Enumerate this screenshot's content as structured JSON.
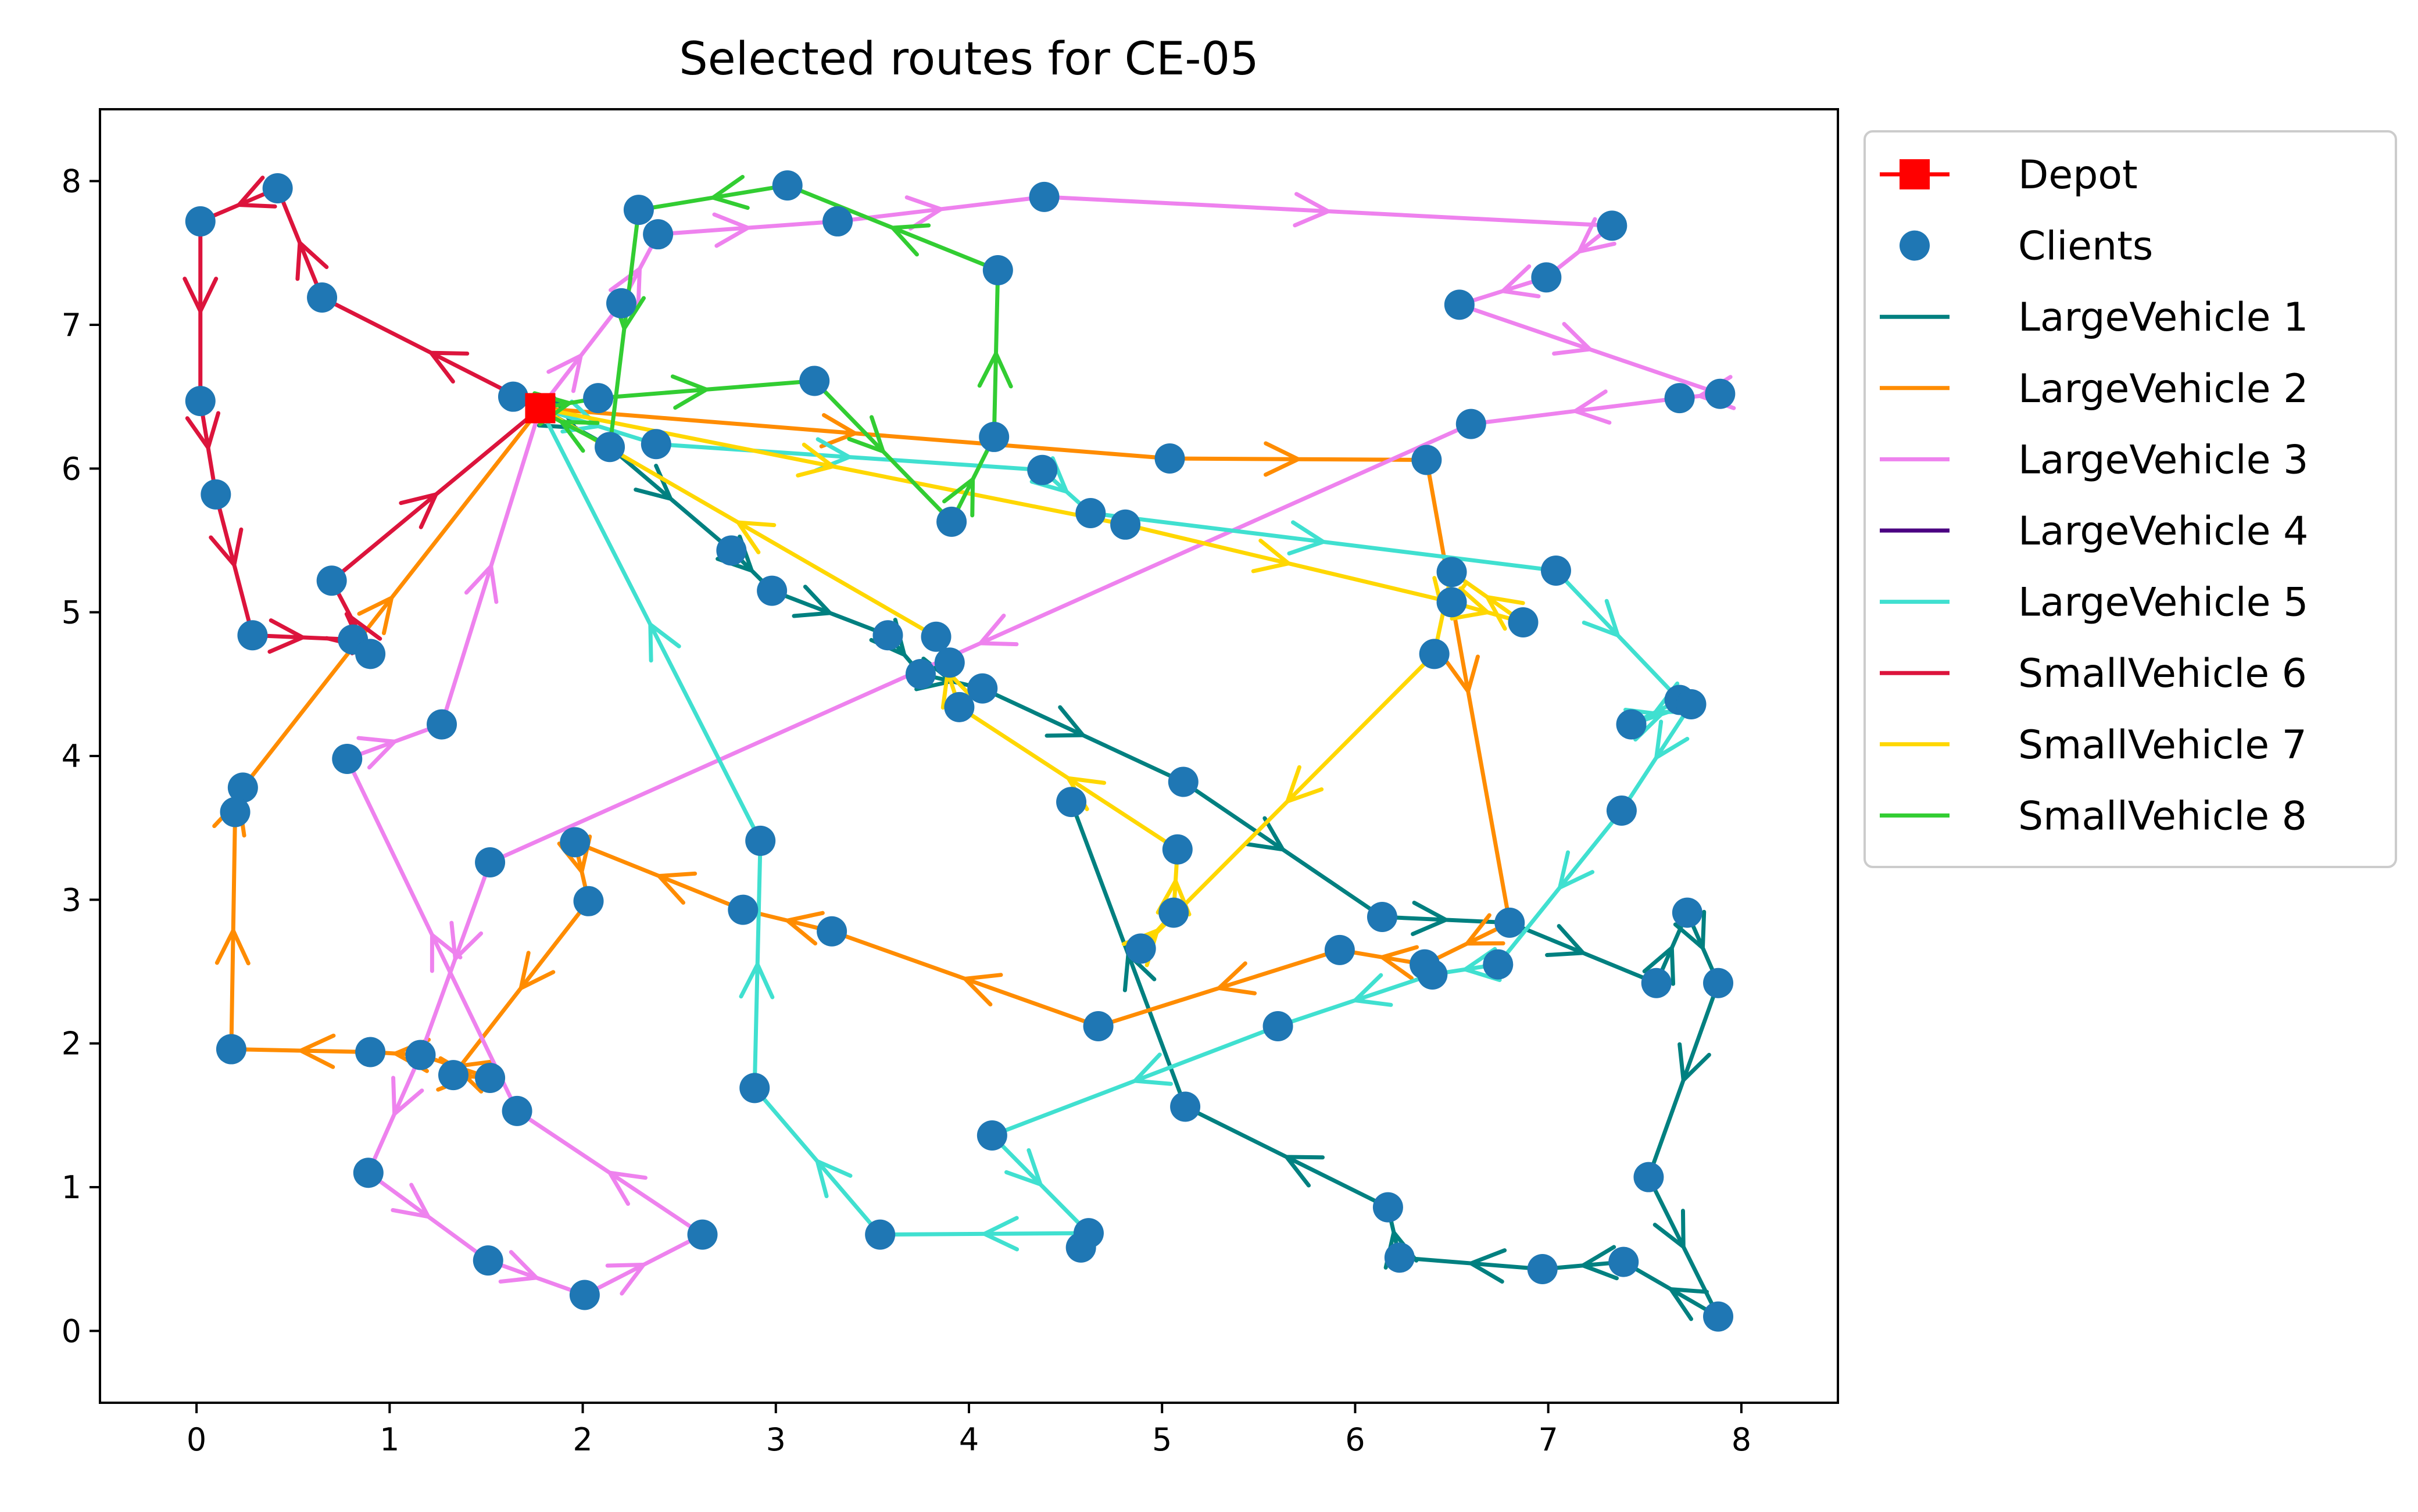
{
  "chart_data": {
    "type": "scatter",
    "title": "Selected routes for CE-05",
    "xlabel": "",
    "ylabel": "",
    "xlim": [
      -0.5,
      8.5
    ],
    "ylim": [
      -0.5,
      8.5
    ],
    "xticks": [
      "0",
      "1",
      "2",
      "3",
      "4",
      "5",
      "6",
      "7",
      "8"
    ],
    "yticks": [
      "0",
      "1",
      "2",
      "3",
      "4",
      "5",
      "6",
      "7",
      "8"
    ],
    "grid": false,
    "legend_position": "outside-right",
    "depot": {
      "name": "Depot",
      "x": 1.78,
      "y": 6.42,
      "color": "#ff0000"
    },
    "clients_legend": {
      "name": "Clients",
      "color": "#1f77b4"
    },
    "clients": [
      [
        0.42,
        7.95
      ],
      [
        0.02,
        7.72
      ],
      [
        0.65,
        7.19
      ],
      [
        0.02,
        6.47
      ],
      [
        0.1,
        5.82
      ],
      [
        0.29,
        4.84
      ],
      [
        0.7,
        5.22
      ],
      [
        0.81,
        4.81
      ],
      [
        0.9,
        4.71
      ],
      [
        1.64,
        6.5
      ],
      [
        2.08,
        6.49
      ],
      [
        2.14,
        6.15
      ],
      [
        2.38,
        6.17
      ],
      [
        2.2,
        7.15
      ],
      [
        2.29,
        7.8
      ],
      [
        2.39,
        7.63
      ],
      [
        3.06,
        7.97
      ],
      [
        3.32,
        7.72
      ],
      [
        4.39,
        7.89
      ],
      [
        4.15,
        7.38
      ],
      [
        3.2,
        6.61
      ],
      [
        4.13,
        6.22
      ],
      [
        3.91,
        5.63
      ],
      [
        5.04,
        6.07
      ],
      [
        4.38,
        5.99
      ],
      [
        4.63,
        5.69
      ],
      [
        4.81,
        5.61
      ],
      [
        7.33,
        7.69
      ],
      [
        6.99,
        7.33
      ],
      [
        6.54,
        7.14
      ],
      [
        7.68,
        6.49
      ],
      [
        7.89,
        6.52
      ],
      [
        6.6,
        6.31
      ],
      [
        6.37,
        6.06
      ],
      [
        7.04,
        5.29
      ],
      [
        6.5,
        5.28
      ],
      [
        6.5,
        5.07
      ],
      [
        6.87,
        4.93
      ],
      [
        6.41,
        4.71
      ],
      [
        2.77,
        5.43
      ],
      [
        2.98,
        5.15
      ],
      [
        3.58,
        4.84
      ],
      [
        3.83,
        4.83
      ],
      [
        3.9,
        4.65
      ],
      [
        3.75,
        4.57
      ],
      [
        4.07,
        4.47
      ],
      [
        3.95,
        4.34
      ],
      [
        7.68,
        4.39
      ],
      [
        7.74,
        4.36
      ],
      [
        7.43,
        4.22
      ],
      [
        5.11,
        3.82
      ],
      [
        4.53,
        3.68
      ],
      [
        5.08,
        3.35
      ],
      [
        7.38,
        3.62
      ],
      [
        0.24,
        3.78
      ],
      [
        0.2,
        3.61
      ],
      [
        1.27,
        4.22
      ],
      [
        0.78,
        3.98
      ],
      [
        1.52,
        3.26
      ],
      [
        1.96,
        3.4
      ],
      [
        2.92,
        3.41
      ],
      [
        2.03,
        2.99
      ],
      [
        2.83,
        2.93
      ],
      [
        3.29,
        2.78
      ],
      [
        5.06,
        2.91
      ],
      [
        4.89,
        2.66
      ],
      [
        6.14,
        2.88
      ],
      [
        5.92,
        2.65
      ],
      [
        6.36,
        2.55
      ],
      [
        6.4,
        2.48
      ],
      [
        6.74,
        2.55
      ],
      [
        6.8,
        2.84
      ],
      [
        7.72,
        2.91
      ],
      [
        7.56,
        2.42
      ],
      [
        7.88,
        2.42
      ],
      [
        4.67,
        2.12
      ],
      [
        5.6,
        2.12
      ],
      [
        0.18,
        1.96
      ],
      [
        0.9,
        1.94
      ],
      [
        1.16,
        1.92
      ],
      [
        1.33,
        1.78
      ],
      [
        1.52,
        1.76
      ],
      [
        1.66,
        1.53
      ],
      [
        2.89,
        1.69
      ],
      [
        4.12,
        1.36
      ],
      [
        0.89,
        1.1
      ],
      [
        1.51,
        0.49
      ],
      [
        2.01,
        0.25
      ],
      [
        2.62,
        0.67
      ],
      [
        3.54,
        0.67
      ],
      [
        4.62,
        0.68
      ],
      [
        4.58,
        0.58
      ],
      [
        5.12,
        1.56
      ],
      [
        6.17,
        0.86
      ],
      [
        6.23,
        0.51
      ],
      [
        6.97,
        0.43
      ],
      [
        7.39,
        0.48
      ],
      [
        7.52,
        1.07
      ],
      [
        7.88,
        0.1
      ]
    ],
    "series": [
      {
        "name": "LargeVehicle 1",
        "color": "#008080",
        "points": [
          [
            1.78,
            6.42
          ],
          [
            2.14,
            6.15
          ],
          [
            2.77,
            5.43
          ],
          [
            2.98,
            5.15
          ],
          [
            3.58,
            4.84
          ],
          [
            3.75,
            4.57
          ],
          [
            4.07,
            4.47
          ],
          [
            5.11,
            3.82
          ],
          [
            6.14,
            2.88
          ],
          [
            6.8,
            2.84
          ],
          [
            7.56,
            2.42
          ],
          [
            7.72,
            2.91
          ],
          [
            7.88,
            2.42
          ],
          [
            7.52,
            1.07
          ],
          [
            7.88,
            0.1
          ],
          [
            7.39,
            0.48
          ],
          [
            6.97,
            0.43
          ],
          [
            6.23,
            0.51
          ],
          [
            6.17,
            0.86
          ],
          [
            5.12,
            1.56
          ],
          [
            4.53,
            3.68
          ]
        ]
      },
      {
        "name": "LargeVehicle 2",
        "color": "#ff8c00",
        "points": [
          [
            1.78,
            6.42
          ],
          [
            5.04,
            6.07
          ],
          [
            6.37,
            6.06
          ],
          [
            6.8,
            2.84
          ],
          [
            6.36,
            2.55
          ],
          [
            5.92,
            2.65
          ],
          [
            4.67,
            2.12
          ],
          [
            3.29,
            2.78
          ],
          [
            2.83,
            2.93
          ],
          [
            1.96,
            3.4
          ],
          [
            2.03,
            2.99
          ],
          [
            1.33,
            1.78
          ],
          [
            1.52,
            1.76
          ],
          [
            1.16,
            1.92
          ],
          [
            0.9,
            1.94
          ],
          [
            0.18,
            1.96
          ],
          [
            0.2,
            3.61
          ],
          [
            0.24,
            3.78
          ],
          [
            1.78,
            6.42
          ]
        ]
      },
      {
        "name": "LargeVehicle 3",
        "color": "#ee82ee",
        "points": [
          [
            1.78,
            6.42
          ],
          [
            2.2,
            7.15
          ],
          [
            2.39,
            7.63
          ],
          [
            3.32,
            7.72
          ],
          [
            4.39,
            7.89
          ],
          [
            7.33,
            7.69
          ],
          [
            6.99,
            7.33
          ],
          [
            6.54,
            7.14
          ],
          [
            7.89,
            6.52
          ],
          [
            7.68,
            6.49
          ],
          [
            6.6,
            6.31
          ],
          [
            1.52,
            3.26
          ],
          [
            1.16,
            1.92
          ],
          [
            0.89,
            1.1
          ],
          [
            1.51,
            0.49
          ],
          [
            2.01,
            0.25
          ],
          [
            2.62,
            0.67
          ],
          [
            1.66,
            1.53
          ],
          [
            0.78,
            3.98
          ],
          [
            1.27,
            4.22
          ],
          [
            1.78,
            6.42
          ]
        ]
      },
      {
        "name": "LargeVehicle 4",
        "color": "#4b0082",
        "points": []
      },
      {
        "name": "LargeVehicle 5",
        "color": "#40e0d0",
        "points": [
          [
            1.78,
            6.42
          ],
          [
            2.38,
            6.17
          ],
          [
            4.38,
            5.99
          ],
          [
            4.63,
            5.69
          ],
          [
            7.04,
            5.29
          ],
          [
            7.68,
            4.39
          ],
          [
            7.43,
            4.22
          ],
          [
            7.74,
            4.36
          ],
          [
            7.38,
            3.62
          ],
          [
            6.74,
            2.55
          ],
          [
            6.4,
            2.48
          ],
          [
            5.6,
            2.12
          ],
          [
            4.12,
            1.36
          ],
          [
            4.62,
            0.68
          ],
          [
            3.54,
            0.67
          ],
          [
            2.89,
            1.69
          ],
          [
            2.92,
            3.41
          ],
          [
            1.78,
            6.42
          ]
        ]
      },
      {
        "name": "SmallVehicle 6",
        "color": "#dc143c",
        "points": [
          [
            1.78,
            6.42
          ],
          [
            0.65,
            7.19
          ],
          [
            0.42,
            7.95
          ],
          [
            0.02,
            7.72
          ],
          [
            0.02,
            6.47
          ],
          [
            0.1,
            5.82
          ],
          [
            0.29,
            4.84
          ],
          [
            0.81,
            4.81
          ],
          [
            0.9,
            4.71
          ],
          [
            0.7,
            5.22
          ],
          [
            1.78,
            6.42
          ]
        ]
      },
      {
        "name": "SmallVehicle 7",
        "color": "#ffd700",
        "points": [
          [
            1.78,
            6.42
          ],
          [
            4.81,
            5.61
          ],
          [
            6.5,
            5.07
          ],
          [
            6.87,
            4.93
          ],
          [
            6.5,
            5.28
          ],
          [
            6.41,
            4.71
          ],
          [
            4.89,
            2.66
          ],
          [
            5.06,
            2.91
          ],
          [
            5.08,
            3.35
          ],
          [
            3.95,
            4.34
          ],
          [
            3.83,
            4.83
          ],
          [
            1.78,
            6.42
          ]
        ]
      },
      {
        "name": "SmallVehicle 8",
        "color": "#32cd32",
        "points": [
          [
            1.78,
            6.42
          ],
          [
            2.08,
            6.49
          ],
          [
            3.2,
            6.61
          ],
          [
            3.91,
            5.63
          ],
          [
            4.13,
            6.22
          ],
          [
            4.15,
            7.38
          ],
          [
            3.06,
            7.97
          ],
          [
            2.29,
            7.8
          ],
          [
            2.14,
            6.15
          ],
          [
            1.64,
            6.5
          ]
        ]
      }
    ]
  }
}
